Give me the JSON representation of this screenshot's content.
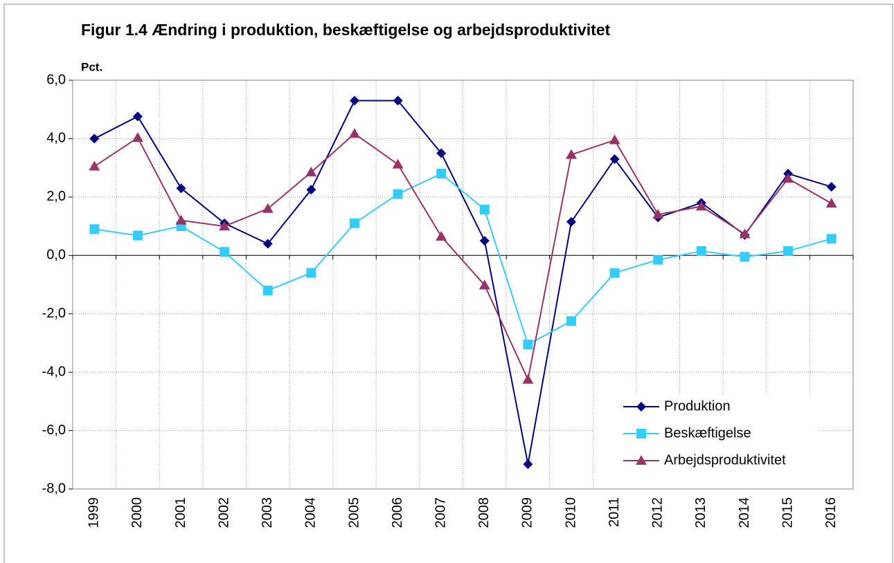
{
  "chart_data": {
    "type": "line",
    "title": "Figur 1.4 Ændring i produktion, beskæftigelse og arbejdsproduktivitet",
    "y_label": "Pct.",
    "categories": [
      "1999",
      "2000",
      "2001",
      "2002",
      "2003",
      "2004",
      "2005",
      "2006",
      "2007",
      "2008",
      "2009",
      "2010",
      "2011",
      "2012",
      "2013",
      "2014",
      "2015",
      "2016"
    ],
    "series": [
      {
        "name": "Produktion",
        "color": "#000080",
        "marker": "diamond",
        "values": [
          4.0,
          4.76,
          2.3,
          1.1,
          0.4,
          2.25,
          5.3,
          5.3,
          3.5,
          0.5,
          -7.15,
          1.15,
          3.3,
          1.3,
          1.8,
          0.7,
          2.8,
          2.35
        ]
      },
      {
        "name": "Beskæftigelse",
        "color": "#33ccff",
        "marker": "square",
        "values": [
          0.9,
          0.68,
          1.0,
          0.12,
          -1.2,
          -0.6,
          1.1,
          2.1,
          2.8,
          1.57,
          -3.05,
          -2.25,
          -0.6,
          -0.15,
          0.15,
          -0.05,
          0.15,
          0.57
        ]
      },
      {
        "name": "Arbejdsproduktivitet",
        "color": "#993366",
        "marker": "triangle",
        "values": [
          3.05,
          4.03,
          1.2,
          1.0,
          1.6,
          2.85,
          4.17,
          3.12,
          0.65,
          -1.02,
          -4.25,
          3.45,
          3.95,
          1.4,
          1.68,
          0.73,
          2.63,
          1.78
        ]
      }
    ],
    "ylim": [
      -8,
      6
    ],
    "yticks": [
      {
        "value": -8,
        "label": "-8,0"
      },
      {
        "value": -6,
        "label": "-6,0"
      },
      {
        "value": -4,
        "label": "-4,0"
      },
      {
        "value": -2,
        "label": "-2,0"
      },
      {
        "value": 0,
        "label": "0,0"
      },
      {
        "value": 2,
        "label": "2,0"
      },
      {
        "value": 4,
        "label": "4,0"
      },
      {
        "value": 6,
        "label": "6,0"
      }
    ],
    "grid": true,
    "legend": "lower right"
  }
}
